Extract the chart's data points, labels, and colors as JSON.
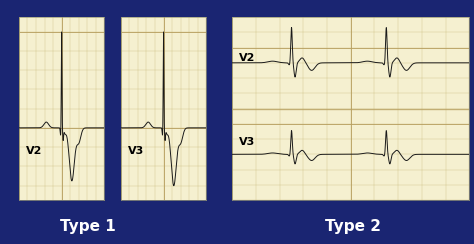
{
  "background_color": "#1a2572",
  "ecg_paper_color": "#f5f0d0",
  "grid_minor_color": "#c8b878",
  "grid_major_color": "#b8a060",
  "ecg_line_color": "#1a1a1a",
  "label_color": "white",
  "type1_label": "Type 1",
  "type2_label": "Type 2",
  "v2_label": "V2",
  "v3_label": "V3",
  "label_fontsize": 11,
  "lead_fontsize": 8,
  "fig_width": 4.74,
  "fig_height": 2.44,
  "dpi": 100
}
